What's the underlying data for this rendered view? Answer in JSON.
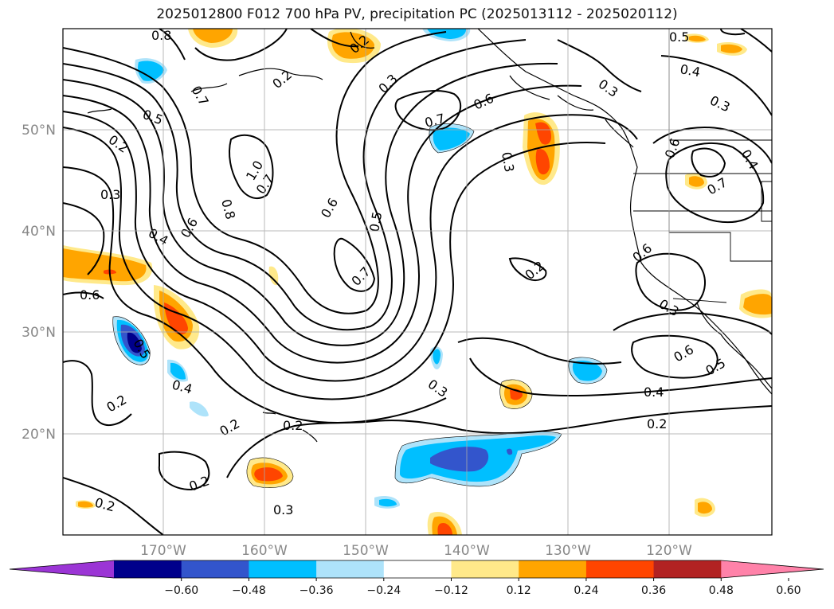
{
  "title": "2025012800 F012 700 hPa PV, precipitation PC (2025013112 - 2025020112)",
  "longitude_labels": [
    "170°W",
    "160°W",
    "150°W",
    "140°W",
    "130°W",
    "120°W"
  ],
  "latitude_labels": [
    "50°N",
    "40°N",
    "30°N",
    "20°N"
  ],
  "contour_labels": [
    "0.8",
    "0.2",
    "0.7",
    "0.2",
    "0.3",
    "0.3",
    "0.5",
    "0.4",
    "0.5",
    "0.3",
    "0.7",
    "0.6",
    "0.2",
    "0.3",
    "0.6",
    "0.4",
    "1.0",
    "0.8",
    "0.7",
    "0.6",
    "0.6",
    "0.5",
    "0.7",
    "0.6",
    "0.2",
    "0.4",
    "0.3",
    "0.7",
    "0.6",
    "0.5",
    "0.3",
    "0.4",
    "0.2",
    "0.5",
    "0.6",
    "0.4",
    "0.2",
    "0.2",
    "0.2",
    "0.3",
    "0.2",
    "0.2",
    "0.3"
  ],
  "colorbar": {
    "colors": [
      "#9b35d5",
      "#00008b",
      "#3355cc",
      "#00bfff",
      "#aee3fa",
      "#ffffff",
      "#ffe98a",
      "#ffa500",
      "#ff4500",
      "#b22222",
      "#ff82a9"
    ],
    "tick_labels": [
      "−0.60",
      "−0.48",
      "−0.36",
      "−0.24",
      "−0.12",
      "0.12",
      "0.24",
      "0.36",
      "0.48",
      "0.60"
    ]
  }
}
